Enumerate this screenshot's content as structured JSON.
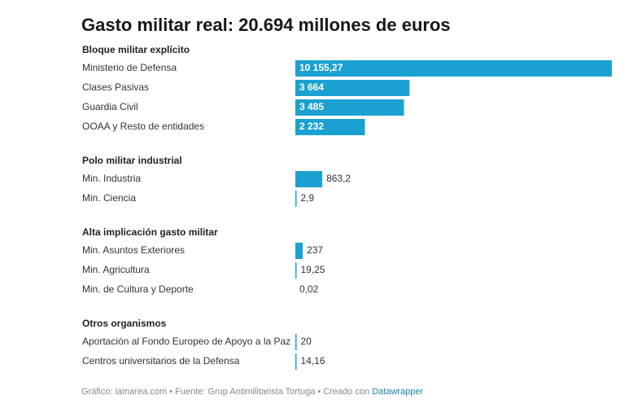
{
  "chart_data": {
    "type": "bar",
    "orientation": "horizontal",
    "title": "Gasto militar real: 20.694 millones de euros",
    "bar_color": "#1ba1d1",
    "label_inside_color": "#ffffff",
    "label_outside_color": "#333333",
    "groups": [
      {
        "name": "Bloque militar explícito",
        "rows": [
          {
            "category": "Ministerio de Defensa",
            "value": 10155.27,
            "label": "10 155,27"
          },
          {
            "category": "Clases Pasivas",
            "value": 3664,
            "label": "3 664"
          },
          {
            "category": "Guardia Civil",
            "value": 3485,
            "label": "3 485"
          },
          {
            "category": "OOAA y Resto de entidades",
            "value": 2232,
            "label": "2 232"
          }
        ]
      },
      {
        "name": "Polo militar industrial",
        "rows": [
          {
            "category": "Min. Industria",
            "value": 863.2,
            "label": "863,2"
          },
          {
            "category": "Min. Ciencia",
            "value": 2.9,
            "label": "2,9"
          }
        ]
      },
      {
        "name": "Alta implicación gasto militar",
        "rows": [
          {
            "category": "Min. Asuntos Exteriores",
            "value": 237,
            "label": "237"
          },
          {
            "category": "Min. Agricultura",
            "value": 19.25,
            "label": "19,25"
          },
          {
            "category": "Min. de Cultura y Deporte",
            "value": 0.02,
            "label": "0,02"
          }
        ]
      },
      {
        "name": "Otros organismos",
        "rows": [
          {
            "category": "Aportación al Fondo Europeo de Apoyo a la Paz",
            "value": 20,
            "label": "20"
          },
          {
            "category": "Centros universitarios de la Defensa",
            "value": 14.16,
            "label": "14,16"
          }
        ]
      }
    ],
    "xlim": [
      0,
      10155.27
    ]
  },
  "footer": {
    "text": "Gráfico: lamarea.com • Fuente: Grup Antimilitarista Tortuga • Creado con ",
    "link": "Datawrapper"
  }
}
